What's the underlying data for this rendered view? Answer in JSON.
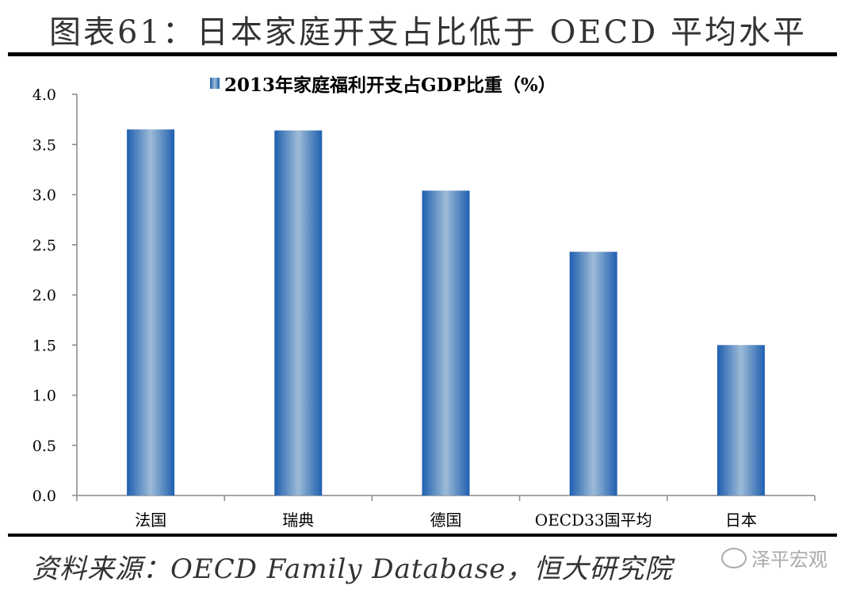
{
  "header": {
    "title": "图表61：日本家庭开支占比低于 OECD 平均水平"
  },
  "source": "资料来源：OECD Family Database，恒大研究院",
  "watermark": {
    "text": "泽平宏观",
    "icon": "wechat-icon"
  },
  "colors": {
    "bar_edge": "#1f5fb0",
    "bar_center": "#9dbbd6",
    "rule": "#000000"
  },
  "chart_data": {
    "type": "bar",
    "title": "",
    "xlabel": "",
    "ylabel": "",
    "categories": [
      "法国",
      "瑞典",
      "德国",
      "OECD33国平均",
      "日本"
    ],
    "series": [
      {
        "name": "2013年家庭福利开支占GDP比重（%）",
        "values": [
          3.65,
          3.64,
          3.04,
          2.43,
          1.5
        ]
      }
    ],
    "ylim": [
      0,
      4.0
    ],
    "yticks": [
      "0.0",
      "0.5",
      "1.0",
      "1.5",
      "2.0",
      "2.5",
      "3.0",
      "3.5",
      "4.0"
    ],
    "grid": false,
    "legend": "top-center"
  }
}
